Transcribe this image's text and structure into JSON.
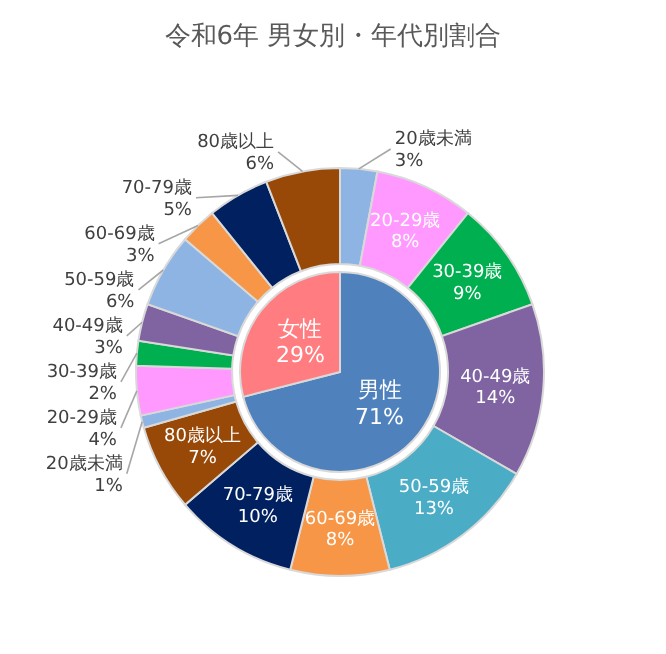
{
  "chart_data": [
    {
      "type": "donut",
      "title": "令和6年 男女別・年代別割合",
      "categories": [
        "20歳未満",
        "20-29歳",
        "30-39歳",
        "40-49歳",
        "50-59歳",
        "60-69歳",
        "70-79歳",
        "80歳以上",
        "20歳未満",
        "20-29歳",
        "30-39歳",
        "40-49歳",
        "50-59歳",
        "60-69歳",
        "70-79歳",
        "80歳以上"
      ],
      "values": [
        3,
        8,
        9,
        14,
        13,
        8,
        10,
        7,
        1,
        4,
        2,
        3,
        6,
        3,
        5,
        6
      ],
      "value_labels": [
        "3%",
        "8%",
        "9%",
        "14%",
        "13%",
        "8%",
        "10%",
        "7%",
        "1%",
        "4%",
        "2%",
        "3%",
        "6%",
        "3%",
        "5%",
        "6%"
      ],
      "colors": [
        "#8db4e2",
        "#ff99ff",
        "#00b050",
        "#8064a2",
        "#4bacc6",
        "#f79646",
        "#002060",
        "#984807",
        "#8db4e2",
        "#ff99ff",
        "#00b050",
        "#8064a2",
        "#8db4e2",
        "#f79646",
        "#002060",
        "#984807"
      ]
    },
    {
      "type": "pie",
      "categories": [
        "男性",
        "女性"
      ],
      "values": [
        71,
        29
      ],
      "value_labels": [
        "71%",
        "29%"
      ],
      "colors": [
        "#4f81bd",
        "#ff7c80"
      ]
    }
  ]
}
